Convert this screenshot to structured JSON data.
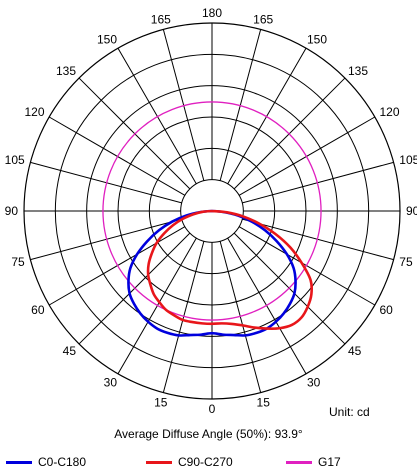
{
  "chart_data": {
    "type": "polar",
    "angle_labels": [
      "180",
      "165",
      "150",
      "135",
      "120",
      "105",
      "90",
      "75",
      "60",
      "45",
      "30",
      "15",
      "0",
      "15",
      "30",
      "45",
      "60",
      "75",
      "90",
      "105",
      "120",
      "135",
      "150",
      "165"
    ],
    "unit": "Unit: cd",
    "subtitle": "Average Diffuse Angle (50%): 93.9°",
    "series": [
      {
        "name": "C0-C180",
        "color": "#0000dd",
        "angles": [
          0,
          5,
          10,
          15,
          20,
          25,
          30,
          35,
          40,
          45,
          50,
          55,
          60,
          65,
          70,
          75,
          80,
          85,
          90
        ],
        "values": [
          0.65,
          0.66,
          0.67,
          0.685,
          0.69,
          0.69,
          0.68,
          0.665,
          0.645,
          0.62,
          0.58,
          0.53,
          0.46,
          0.38,
          0.3,
          0.22,
          0.14,
          0.06,
          0
        ]
      },
      {
        "name": "C90-C270",
        "color": "#e8161a",
        "angles_right": [
          0,
          5,
          10,
          15,
          20,
          25,
          30,
          35,
          40,
          45,
          50,
          55,
          60,
          65,
          70,
          75,
          80,
          85,
          90
        ],
        "values_right": [
          0.6,
          0.6,
          0.61,
          0.63,
          0.66,
          0.69,
          0.72,
          0.74,
          0.74,
          0.72,
          0.69,
          0.64,
          0.55,
          0.46,
          0.36,
          0.26,
          0.17,
          0.08,
          0
        ],
        "angles_left": [
          0,
          5,
          10,
          15,
          20,
          25,
          30,
          35,
          40,
          45,
          50,
          55,
          60,
          65,
          70,
          75,
          80,
          85,
          90
        ],
        "values_left": [
          0.6,
          0.6,
          0.6,
          0.6,
          0.59,
          0.58,
          0.56,
          0.54,
          0.51,
          0.48,
          0.44,
          0.39,
          0.34,
          0.28,
          0.22,
          0.16,
          0.1,
          0.05,
          0
        ]
      },
      {
        "name": "G17",
        "color": "#e020c0",
        "shape": "circle",
        "radius": 0.58
      }
    ],
    "rings": 6,
    "spoke_step_deg": 15
  }
}
